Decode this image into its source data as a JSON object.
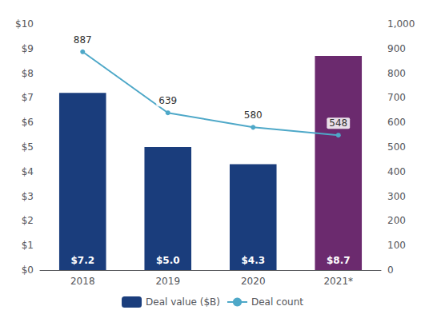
{
  "chart_data": {
    "type": "bar",
    "categories": [
      "2018",
      "2019",
      "2020",
      "2021*"
    ],
    "series": [
      {
        "name": "Deal value ($B)",
        "type": "bar",
        "colors": [
          "#1a3d7c",
          "#1a3d7c",
          "#1a3d7c",
          "#6b2a6e"
        ],
        "values": [
          7.2,
          5.0,
          4.3,
          8.7
        ],
        "value_labels": [
          "$7.2",
          "$5.0",
          "$4.3",
          "$8.7"
        ],
        "data_labels": true
      },
      {
        "name": "Deal count",
        "type": "line",
        "color": "#4ea8c8",
        "axis": "y2",
        "marker": "circle",
        "values": [
          887,
          639,
          580,
          548
        ],
        "data_labels": true
      }
    ],
    "ylim": [
      0,
      10
    ],
    "yticks": [
      {
        "value": 0,
        "label": "$0"
      },
      {
        "value": 1,
        "label": "$1"
      },
      {
        "value": 2,
        "label": "$2"
      },
      {
        "value": 3,
        "label": "$3"
      },
      {
        "value": 4,
        "label": "$4"
      },
      {
        "value": 5,
        "label": "$5"
      },
      {
        "value": 6,
        "label": "$6"
      },
      {
        "value": 7,
        "label": "$7"
      },
      {
        "value": 8,
        "label": "$8"
      },
      {
        "value": 9,
        "label": "$9"
      },
      {
        "value": 10,
        "label": "$10"
      }
    ],
    "y2lim": [
      0,
      1000
    ],
    "y2ticks": [
      0,
      100,
      200,
      300,
      400,
      500,
      600,
      700,
      800,
      900,
      {
        "value": 1000,
        "label": "1,000"
      }
    ],
    "grid": false,
    "legend": "bottom"
  }
}
